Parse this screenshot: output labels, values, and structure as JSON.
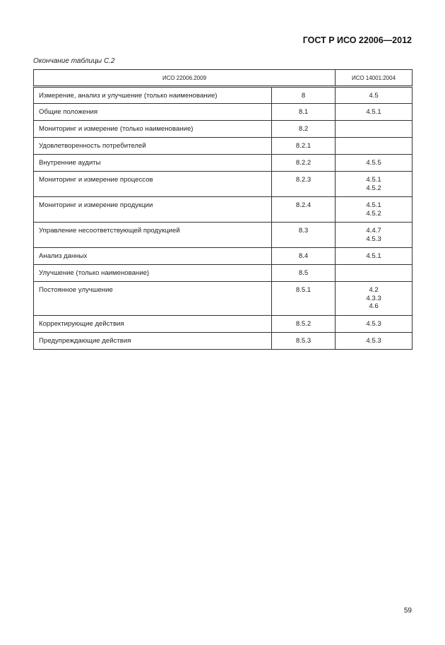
{
  "header": {
    "standard": "ГОСТ Р ИСО 22006—2012"
  },
  "caption": "Окончание таблицы С.2",
  "table": {
    "headers": [
      "ИСО 22006.2009",
      "ИСО 14001:2004"
    ],
    "rows": [
      {
        "name": "Измерение, анализ и улучшение (только наименование)",
        "iso22006": "8",
        "iso14001": [
          "4.5"
        ]
      },
      {
        "name": "Общие положения",
        "iso22006": "8.1",
        "iso14001": [
          "4.5.1"
        ]
      },
      {
        "name": "Мониторинг и измерение (только наименование)",
        "iso22006": "8.2",
        "iso14001": []
      },
      {
        "name": "Удовлетворенность потребителей",
        "iso22006": "8.2.1",
        "iso14001": []
      },
      {
        "name": "Внутренние аудиты",
        "iso22006": "8.2.2",
        "iso14001": [
          "4.5.5"
        ]
      },
      {
        "name": "Мониторинг и измерение процессов",
        "iso22006": "8.2.3",
        "iso14001": [
          "4.5.1",
          "4.5.2"
        ]
      },
      {
        "name": "Мониторинг и измерение продукции",
        "iso22006": "8.2.4",
        "iso14001": [
          "4.5.1",
          "4.5.2"
        ]
      },
      {
        "name": "Управление несоответствующей продукцией",
        "iso22006": "8.3",
        "iso14001": [
          "4.4.7",
          "4.5.3"
        ]
      },
      {
        "name": "Анализ данных",
        "iso22006": "8.4",
        "iso14001": [
          "4.5.1"
        ]
      },
      {
        "name": "Улучшение (только наименование)",
        "iso22006": "8.5",
        "iso14001": []
      },
      {
        "name": "Постоянное улучшение",
        "iso22006": "8.5.1",
        "iso14001": [
          "4.2",
          "4.3.3",
          "4.6"
        ]
      },
      {
        "name": "Корректирующие действия",
        "iso22006": "8.5.2",
        "iso14001": [
          "4.5.3"
        ]
      },
      {
        "name": "Предупреждающие действия",
        "iso22006": "8.5.3",
        "iso14001": [
          "4.5.3"
        ]
      }
    ]
  },
  "page_number": "59"
}
